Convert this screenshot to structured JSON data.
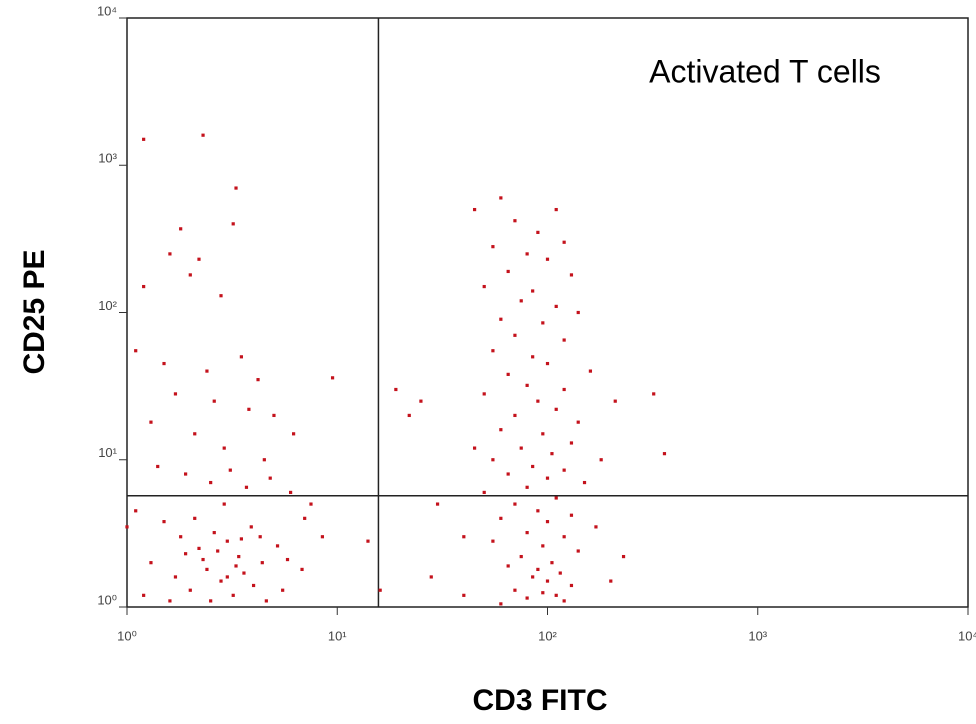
{
  "chart_data": {
    "type": "scatter",
    "xlabel": "CD3 FITC",
    "ylabel": "CD25 PE",
    "annotation": "Activated T cells",
    "xscale": "log",
    "yscale": "log",
    "xlim": [
      1,
      10000
    ],
    "ylim": [
      1,
      10000
    ],
    "xticks": [
      {
        "value": 1,
        "label": "10⁰"
      },
      {
        "value": 10,
        "label": "10¹"
      },
      {
        "value": 100,
        "label": "10²"
      },
      {
        "value": 1000,
        "label": "10³"
      },
      {
        "value": 10000,
        "label": "10⁴"
      }
    ],
    "yticks": [
      {
        "value": 1,
        "label": "10⁰"
      },
      {
        "value": 10,
        "label": "10¹"
      },
      {
        "value": 100,
        "label": "10²"
      },
      {
        "value": 1000,
        "label": "10³"
      },
      {
        "value": 10000,
        "label": "10⁴"
      }
    ],
    "gates": {
      "x": 15.7,
      "y": 5.7
    },
    "series": [
      {
        "color": "#c4121c",
        "x": [
          1.2,
          2.3,
          3.3,
          1.6,
          2,
          2.2,
          1.8,
          1.2,
          3.2,
          2.8,
          1.1,
          1.5,
          2.4,
          3.5,
          4.2,
          1.7,
          2.6,
          3.8,
          5,
          1.3,
          2.1,
          2.9,
          4.5,
          6.2,
          1.4,
          1.9,
          2.5,
          3.1,
          3.7,
          4.8,
          6,
          7.5,
          8.5,
          1.1,
          1.5,
          1.8,
          2.2,
          2.6,
          3,
          3.4,
          3.9,
          4.4,
          5.2,
          6.8,
          1.3,
          1.7,
          2,
          2.4,
          2.8,
          3.2,
          3.6,
          4,
          4.6,
          5.5,
          1.2,
          1.6,
          2.3,
          2.7,
          3.3,
          4.3,
          9.5,
          7,
          1,
          1.9,
          2.5,
          3,
          3.5,
          2.1,
          2.9,
          5.8,
          60,
          45,
          110,
          70,
          90,
          120,
          55,
          80,
          100,
          65,
          130,
          50,
          85,
          75,
          110,
          140,
          60,
          95,
          70,
          120,
          55,
          85,
          100,
          160,
          65,
          80,
          120,
          50,
          90,
          110,
          70,
          140,
          60,
          95,
          130,
          75,
          105,
          55,
          85,
          120,
          65,
          100,
          150,
          80,
          50,
          110,
          70,
          90,
          130,
          60,
          100,
          170,
          80,
          120,
          55,
          95,
          140,
          75,
          105,
          65,
          90,
          115,
          85,
          100,
          130,
          70,
          95,
          110,
          80,
          120,
          60,
          200,
          230,
          180,
          210,
          320,
          360,
          30,
          28,
          22,
          25,
          19,
          40,
          45,
          14,
          16,
          40
        ],
        "y": [
          1500,
          1600,
          700,
          250,
          180,
          230,
          370,
          150,
          400,
          130,
          55,
          45,
          40,
          50,
          35,
          28,
          25,
          22,
          20,
          18,
          15,
          12,
          10,
          15,
          9,
          8,
          7,
          8.5,
          6.5,
          7.5,
          6,
          5,
          3,
          4.5,
          3.8,
          3,
          2.5,
          3.2,
          2.8,
          2.2,
          3.5,
          2,
          2.6,
          1.8,
          2,
          1.6,
          1.3,
          1.8,
          1.5,
          1.2,
          1.7,
          1.4,
          1.1,
          1.3,
          1.2,
          1.1,
          2.1,
          2.4,
          1.9,
          3,
          36,
          4,
          3.5,
          2.3,
          1.1,
          1.6,
          2.9,
          4,
          5,
          2.1,
          600,
          500,
          500,
          420,
          350,
          300,
          280,
          250,
          230,
          190,
          180,
          150,
          140,
          120,
          110,
          100,
          90,
          85,
          70,
          65,
          55,
          50,
          45,
          40,
          38,
          32,
          30,
          28,
          25,
          22,
          20,
          18,
          16,
          15,
          13,
          12,
          11,
          10,
          9,
          8.5,
          8,
          7.5,
          7,
          6.5,
          6,
          5.5,
          5,
          4.5,
          4.2,
          4,
          3.8,
          3.5,
          3.2,
          3,
          2.8,
          2.6,
          2.4,
          2.2,
          2,
          1.9,
          1.8,
          1.7,
          1.6,
          1.5,
          1.4,
          1.3,
          1.25,
          1.2,
          1.15,
          1.1,
          1.05,
          1.5,
          2.2,
          10,
          25,
          28,
          11,
          5,
          1.6,
          20,
          25,
          30,
          3,
          12,
          2.8,
          1.3,
          1.2
        ]
      }
    ]
  }
}
